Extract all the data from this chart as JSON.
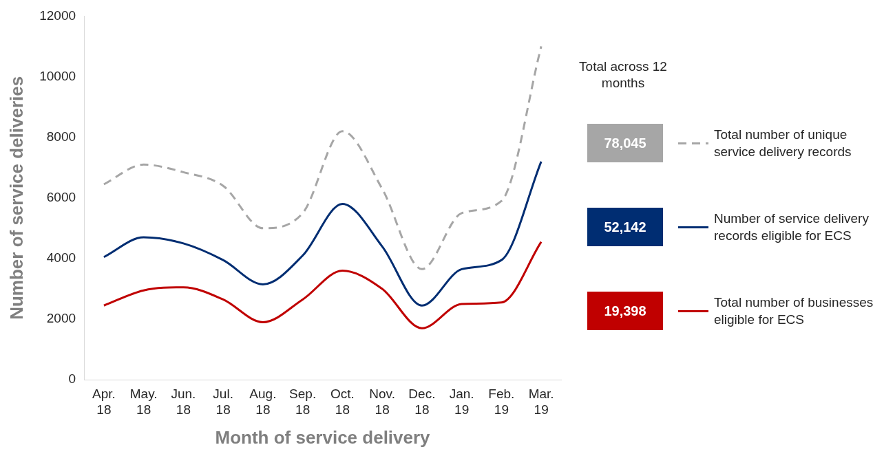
{
  "chart_data": {
    "type": "line",
    "xlabel": "Month of service delivery",
    "ylabel": "Number of service deliveries",
    "legend_title": "Total across 12 months",
    "categories": [
      "Apr. 18",
      "May. 18",
      "Jun. 18",
      "Jul. 18",
      "Aug. 18",
      "Sep. 18",
      "Oct. 18",
      "Nov. 18",
      "Dec. 18",
      "Jan. 19",
      "Feb. 19",
      "Mar. 19"
    ],
    "series": [
      {
        "name": "Total number of unique service delivery records",
        "color": "#a6a6a6",
        "line_style": "dashed",
        "values": [
          6450,
          7100,
          6850,
          6400,
          5000,
          5500,
          8200,
          6300,
          3650,
          5500,
          5900,
          11000
        ]
      },
      {
        "name": "Number of service delivery records eligible for ECS",
        "color": "#002d72",
        "line_style": "solid",
        "values": [
          4050,
          4700,
          4500,
          3950,
          3150,
          4100,
          5800,
          4400,
          2450,
          3650,
          3950,
          7200
        ]
      },
      {
        "name": "Total number of businesses eligible for ECS",
        "color": "#c00000",
        "line_style": "solid",
        "values": [
          2450,
          2950,
          3050,
          2650,
          1900,
          2650,
          3600,
          3000,
          1700,
          2500,
          2550,
          4550
        ]
      }
    ],
    "annotations": [
      "78,045",
      "52,142",
      "19,398"
    ],
    "ylim": [
      0,
      12000
    ],
    "yticks": [
      0,
      2000,
      4000,
      6000,
      8000,
      10000,
      12000
    ],
    "grid": false,
    "legend": "right",
    "marker": "none"
  }
}
